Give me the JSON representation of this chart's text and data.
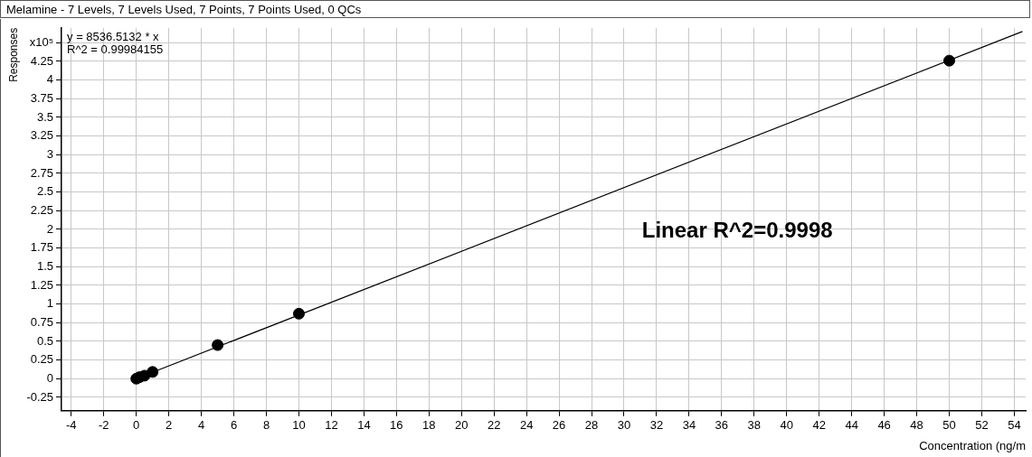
{
  "chart_data": {
    "type": "scatter",
    "title": "Melamine - 7 Levels, 7 Levels Used, 7 Points, 7 Points Used, 0 QCs",
    "xlabel": "Concentration (ng/m",
    "ylabel": "Responses",
    "annotations": [
      "y = 8536.5132 * x",
      "R^2 = 0.99984155",
      "Linear R^2=0.9998"
    ],
    "series": [
      {
        "color": "#000000",
        "x": [
          0,
          0.2,
          0.5,
          1,
          5,
          10,
          50
        ],
        "values": [
          0,
          0.02,
          0.04,
          0.09,
          0.45,
          0.87,
          4.26
        ]
      },
      {
        "type": "line",
        "color": "#000000",
        "x": [
          0,
          54.5
        ],
        "values": [
          0,
          4.65
        ],
        "marker": "none"
      }
    ],
    "marker": "circle",
    "grid": true,
    "legend": false,
    "line_style": "solid",
    "xlim": [
      -4.6,
      54.7
    ],
    "xticks": [
      -4,
      -2,
      0,
      2,
      4,
      6,
      8,
      10,
      12,
      14,
      16,
      18,
      20,
      22,
      24,
      26,
      28,
      30,
      32,
      34,
      36,
      38,
      40,
      42,
      44,
      46,
      48,
      50,
      52,
      54
    ],
    "ylim": [
      -0.43,
      4.7
    ],
    "yticks": [
      -0.25,
      0,
      0.25,
      0.5,
      0.75,
      1,
      1.25,
      1.5,
      1.75,
      2,
      2.25,
      2.5,
      2.75,
      3,
      3.25,
      3.5,
      3.75,
      4,
      4.25,
      {
        "value": 4.5,
        "label": "x10⁵"
      }
    ]
  }
}
